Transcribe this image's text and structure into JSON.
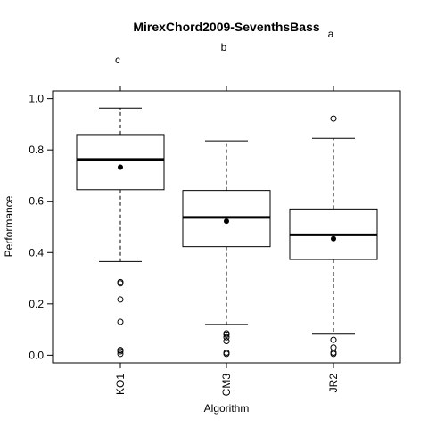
{
  "chart_data": {
    "type": "box",
    "title": "MirexChord2009-SeventhsBass",
    "xlabel": "Algorithm",
    "ylabel": "Performance",
    "ylim": [
      -0.03,
      1.03
    ],
    "yticks": [
      0.0,
      0.2,
      0.4,
      0.6,
      0.8,
      1.0
    ],
    "ytick_labels": [
      "0.0",
      "0.2",
      "0.4",
      "0.6",
      "0.8",
      "1.0"
    ],
    "categories": [
      "KO1",
      "CM3",
      "JR2"
    ],
    "group_letters": [
      "c",
      "b",
      "a"
    ],
    "boxes": [
      {
        "whisker_low": 0.365,
        "q1": 0.645,
        "median": 0.763,
        "q3": 0.86,
        "whisker_high": 0.963,
        "mean": 0.733,
        "outliers": [
          0.285,
          0.28,
          0.217,
          0.13,
          0.02,
          0.015,
          0.005
        ]
      },
      {
        "whisker_low": 0.12,
        "q1": 0.423,
        "median": 0.537,
        "q3": 0.642,
        "whisker_high": 0.835,
        "mean": 0.522,
        "outliers": [
          0.085,
          0.08,
          0.07,
          0.055,
          0.01,
          0.005
        ]
      },
      {
        "whisker_low": 0.082,
        "q1": 0.373,
        "median": 0.469,
        "q3": 0.57,
        "whisker_high": 0.845,
        "mean": 0.454,
        "outliers": [
          0.922,
          0.06,
          0.03,
          0.01,
          0.005
        ]
      }
    ]
  }
}
